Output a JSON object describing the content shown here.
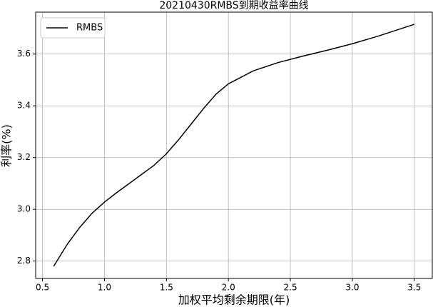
{
  "chart_data": {
    "type": "line",
    "title": "20210430RMBS到期收益率曲线",
    "x_label": "加权平均剩余期限(年)",
    "y_label": "利率(%)",
    "x": [
      0.59,
      0.7,
      0.8,
      0.9,
      1.0,
      1.1,
      1.2,
      1.3,
      1.4,
      1.5,
      1.6,
      1.7,
      1.8,
      1.9,
      2.0,
      2.2,
      2.4,
      2.6,
      2.8,
      3.0,
      3.2,
      3.5
    ],
    "series": [
      {
        "name": "RMBS",
        "color": "#000000",
        "values": [
          2.78,
          2.865,
          2.93,
          2.985,
          3.028,
          3.065,
          3.1,
          3.135,
          3.17,
          3.215,
          3.27,
          3.33,
          3.39,
          3.445,
          3.485,
          3.535,
          3.567,
          3.592,
          3.615,
          3.64,
          3.668,
          3.715
        ]
      }
    ],
    "xlim": [
      0.445,
      3.645
    ],
    "ylim": [
      2.733,
      3.762
    ],
    "xticks": [
      0.5,
      {
        "value": 1,
        "label": "1.0"
      },
      1.5,
      {
        "value": 2,
        "label": "2.0"
      },
      2.5,
      {
        "value": 3,
        "label": "3.0"
      },
      3.5
    ],
    "yticks": [
      2.8,
      {
        "value": 3,
        "label": "3.0"
      },
      3.2,
      3.4,
      3.6
    ],
    "grid": true,
    "legend": "upper left"
  }
}
